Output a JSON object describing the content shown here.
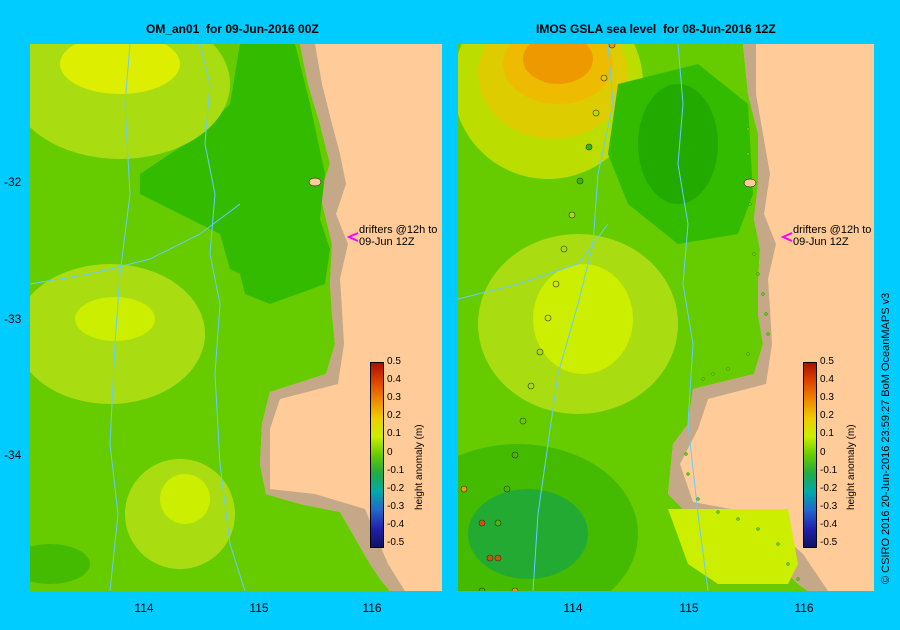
{
  "panels": [
    {
      "title": "OM_an01  for 09-Jun-2016 00Z"
    },
    {
      "title": "IMOS GSLA sea level  for 08-Jun-2016 12Z"
    }
  ],
  "axes": {
    "y_ticks": [
      "-32",
      "-33",
      "-34"
    ],
    "x_ticks": [
      "114",
      "115",
      "116"
    ]
  },
  "colorbar": {
    "label": "height anomaly (m)",
    "ticks": [
      "0.5",
      "0.4",
      "0.3",
      "0.2",
      "0.1",
      "0",
      "-0.1",
      "-0.2",
      "-0.3",
      "-0.4",
      "-0.5"
    ]
  },
  "drifter_note": "drifters @12h to\n09-Jun 12Z",
  "credit": "© CSIRO 2016   20-Jun-2016 23:59:27 BoM OceanMAPS v3",
  "colors": {
    "background": "#00ccff",
    "land": "#ffcc99",
    "coast": "#c4a888",
    "marker": "#ff00ff"
  }
}
